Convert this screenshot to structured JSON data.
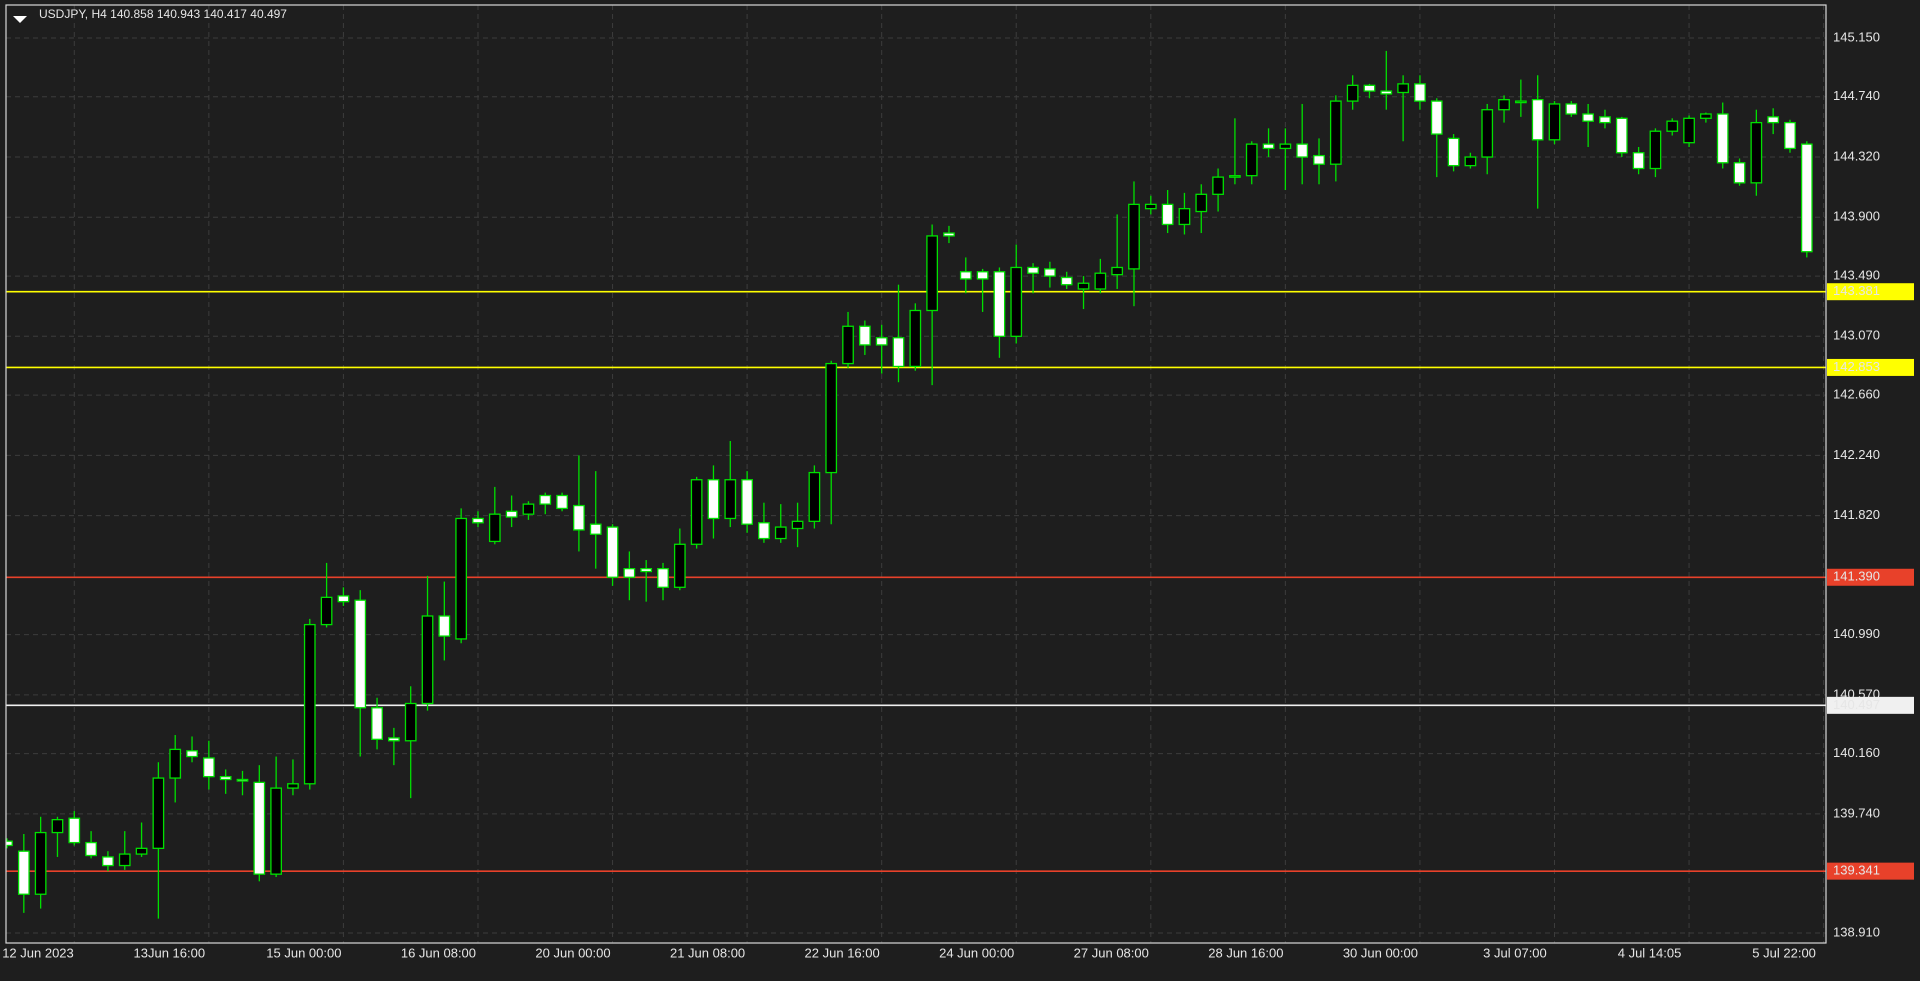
{
  "chart_data": {
    "type": "candlestick",
    "title": "USDJPY, H4 140.858 140.943 140.417 40.497",
    "categories": [
      null,
      null,
      "12 Jun 2023",
      null,
      null,
      null,
      null,
      null,
      null,
      null,
      "13Jun 16:00",
      null,
      null,
      null,
      null,
      null,
      null,
      null,
      "15 Jun 00:00",
      null,
      null,
      null,
      null,
      null,
      null,
      null,
      "16 Jun 08:00",
      null,
      null,
      null,
      null,
      null,
      null,
      null,
      "20 Jun 00:00",
      null,
      null,
      null,
      null,
      null,
      null,
      null,
      "21 Jun 08:00",
      null,
      null,
      null,
      null,
      null,
      null,
      null,
      "22 Jun 16:00",
      null,
      null,
      null,
      null,
      null,
      null,
      null,
      "24 Jun 00:00",
      null,
      null,
      null,
      null,
      null,
      null,
      null,
      "27 Jun 08:00",
      null,
      null,
      null,
      null,
      null,
      null,
      null,
      "28 Jun 16:00",
      null,
      null,
      null,
      null,
      null,
      null,
      null,
      "30 Jun 00:00",
      null,
      null,
      null,
      null,
      null,
      null,
      null,
      "3 Jul 07:00",
      null,
      null,
      null,
      null,
      null,
      null,
      null,
      "4 Jul 14:05",
      null,
      null,
      null,
      null,
      null,
      null,
      null,
      "5 Jul 22:00",
      null
    ],
    "open": [
      139.55,
      139.48,
      139.18,
      139.61,
      139.71,
      139.54,
      139.44,
      139.38,
      139.46,
      139.5,
      139.99,
      140.18,
      140.13,
      140.0,
      139.98,
      139.96,
      139.32,
      139.92,
      139.95,
      141.06,
      141.26,
      141.23,
      140.48,
      140.27,
      140.25,
      140.51,
      141.12,
      140.96,
      141.8,
      141.64,
      141.85,
      141.83,
      141.96,
      141.96,
      141.89,
      141.76,
      141.74,
      141.45,
      141.45,
      141.45,
      141.32,
      141.62,
      142.07,
      141.8,
      142.07,
      141.77,
      141.66,
      141.73,
      141.78,
      142.12,
      142.88,
      143.14,
      143.06,
      143.06,
      142.86,
      143.25,
      143.79,
      143.52,
      143.52,
      143.52,
      143.07,
      143.55,
      143.54,
      143.48,
      143.4,
      143.4,
      143.5,
      143.54,
      143.96,
      143.99,
      143.85,
      143.94,
      144.06,
      144.18,
      144.19,
      144.41,
      144.38,
      144.41,
      144.33,
      144.27,
      144.71,
      144.82,
      144.78,
      144.77,
      144.83,
      144.71,
      144.45,
      144.26,
      144.32,
      144.65,
      144.7,
      144.72,
      144.44,
      144.69,
      144.62,
      144.6,
      144.59,
      144.35,
      144.24,
      144.5,
      144.42,
      144.59,
      144.62,
      144.28,
      144.14,
      144.6,
      144.56,
      144.41
    ],
    "high": [
      139.57,
      139.6,
      139.72,
      139.72,
      139.76,
      139.62,
      139.48,
      139.62,
      139.68,
      140.1,
      140.29,
      140.28,
      140.25,
      140.05,
      140.04,
      140.08,
      140.14,
      140.12,
      141.1,
      141.49,
      141.32,
      141.3,
      140.55,
      140.34,
      140.63,
      141.4,
      141.36,
      141.87,
      141.85,
      142.02,
      141.96,
      141.92,
      141.98,
      141.98,
      142.24,
      142.13,
      141.76,
      141.57,
      141.51,
      141.49,
      141.73,
      142.09,
      142.17,
      142.34,
      142.13,
      141.91,
      141.9,
      141.91,
      142.17,
      142.9,
      143.24,
      143.18,
      143.15,
      143.43,
      143.3,
      143.85,
      143.84,
      143.62,
      143.54,
      143.55,
      143.71,
      143.58,
      143.59,
      143.52,
      143.49,
      143.61,
      143.92,
      144.15,
      144.05,
      144.09,
      144.07,
      144.13,
      144.24,
      144.59,
      144.43,
      144.52,
      144.52,
      144.69,
      144.45,
      144.75,
      144.89,
      144.83,
      145.06,
      144.89,
      144.89,
      144.73,
      144.48,
      144.35,
      144.69,
      144.75,
      144.86,
      144.89,
      144.71,
      144.71,
      144.69,
      144.65,
      144.6,
      144.39,
      144.52,
      144.59,
      144.61,
      144.63,
      144.7,
      144.31,
      144.65,
      144.66,
      144.58,
      144.43
    ],
    "low": [
      139.5,
      139.05,
      139.08,
      139.44,
      139.52,
      139.43,
      139.34,
      139.35,
      139.44,
      139.01,
      139.82,
      140.1,
      139.91,
      139.88,
      139.87,
      139.27,
      139.3,
      139.87,
      139.91,
      141.04,
      141.19,
      140.14,
      140.19,
      140.08,
      139.85,
      140.46,
      140.81,
      140.93,
      141.74,
      141.62,
      141.74,
      141.79,
      141.83,
      141.85,
      141.57,
      141.45,
      141.33,
      141.23,
      141.22,
      141.23,
      141.3,
      141.59,
      141.66,
      141.74,
      141.7,
      141.63,
      141.63,
      141.6,
      141.73,
      141.76,
      142.85,
      142.94,
      142.81,
      142.75,
      142.83,
      142.73,
      143.72,
      143.37,
      143.24,
      142.92,
      143.02,
      143.37,
      143.41,
      143.4,
      143.26,
      143.37,
      143.4,
      143.28,
      143.92,
      143.79,
      143.78,
      143.79,
      143.94,
      144.13,
      144.13,
      144.32,
      144.09,
      144.13,
      144.13,
      144.15,
      144.65,
      144.73,
      144.65,
      144.43,
      144.65,
      144.18,
      144.22,
      144.24,
      144.2,
      144.56,
      144.6,
      143.96,
      144.41,
      144.6,
      144.39,
      144.52,
      144.32,
      144.2,
      144.18,
      144.47,
      144.39,
      144.56,
      144.24,
      144.12,
      144.05,
      144.48,
      144.35,
      143.62
    ],
    "close": [
      139.52,
      139.18,
      139.61,
      139.7,
      139.54,
      139.45,
      139.38,
      139.46,
      139.5,
      139.99,
      140.19,
      140.14,
      140.0,
      139.98,
      139.97,
      139.32,
      139.92,
      139.95,
      141.06,
      141.25,
      141.22,
      140.48,
      140.26,
      140.25,
      140.51,
      141.12,
      140.98,
      141.8,
      141.77,
      141.83,
      141.81,
      141.9,
      141.9,
      141.87,
      141.72,
      141.69,
      141.39,
      141.39,
      141.43,
      141.32,
      141.62,
      142.07,
      141.8,
      142.07,
      141.76,
      141.66,
      141.74,
      141.78,
      142.12,
      142.88,
      143.14,
      143.01,
      143.01,
      142.86,
      143.25,
      143.77,
      143.77,
      143.47,
      143.47,
      143.07,
      143.55,
      143.51,
      143.49,
      143.43,
      143.44,
      143.51,
      143.55,
      143.99,
      143.99,
      143.85,
      143.96,
      144.06,
      144.18,
      144.19,
      144.41,
      144.38,
      144.41,
      144.32,
      144.27,
      144.71,
      144.82,
      144.78,
      144.76,
      144.83,
      144.71,
      144.48,
      144.26,
      144.32,
      144.65,
      144.72,
      144.71,
      144.44,
      144.69,
      144.62,
      144.57,
      144.56,
      144.35,
      144.24,
      144.5,
      144.57,
      144.59,
      144.62,
      144.28,
      144.14,
      144.56,
      144.56,
      144.38,
      143.66
    ],
    "ylim": [
      138.84,
      145.38
    ],
    "yticks": [
      {
        "value": 145.15,
        "label": "145.150"
      },
      {
        "value": 144.74,
        "label": "144.740"
      },
      {
        "value": 144.32,
        "label": "144.320"
      },
      {
        "value": 143.9,
        "label": "143.900"
      },
      {
        "value": 143.49,
        "label": "143.490"
      },
      {
        "value": 143.07,
        "label": "143.070"
      },
      {
        "value": 142.66,
        "label": "142.660"
      },
      {
        "value": 142.24,
        "label": "142.240"
      },
      {
        "value": 141.82,
        "label": "141.820"
      },
      {
        "value": 140.99,
        "label": "140.990"
      },
      {
        "value": 140.57,
        "label": "140.570"
      },
      {
        "value": 140.16,
        "label": "140.160"
      },
      {
        "value": 139.74,
        "label": "139.740"
      },
      {
        "value": 138.91,
        "label": "138.910"
      }
    ],
    "levels": [
      {
        "value": 143.381,
        "label": "143.381",
        "color": "#ffff00",
        "text_color": "#3a3a00"
      },
      {
        "value": 142.853,
        "label": "142.853",
        "color": "#ffff00",
        "text_color": "#3a3a00"
      },
      {
        "value": 141.39,
        "label": "141.390",
        "color": "#e8412a",
        "text_color": "#ffb3a6"
      },
      {
        "value": 140.497,
        "label": "140.497",
        "color": "#f0f0f0",
        "text_color": "#444444"
      },
      {
        "value": 139.341,
        "label": "139.341",
        "color": "#e8412a",
        "text_color": "#ffb3a6"
      }
    ],
    "grid": true,
    "candle_color": "#00e000",
    "bear_body_color": "#ffffff",
    "bull_body_color": "#000000"
  }
}
